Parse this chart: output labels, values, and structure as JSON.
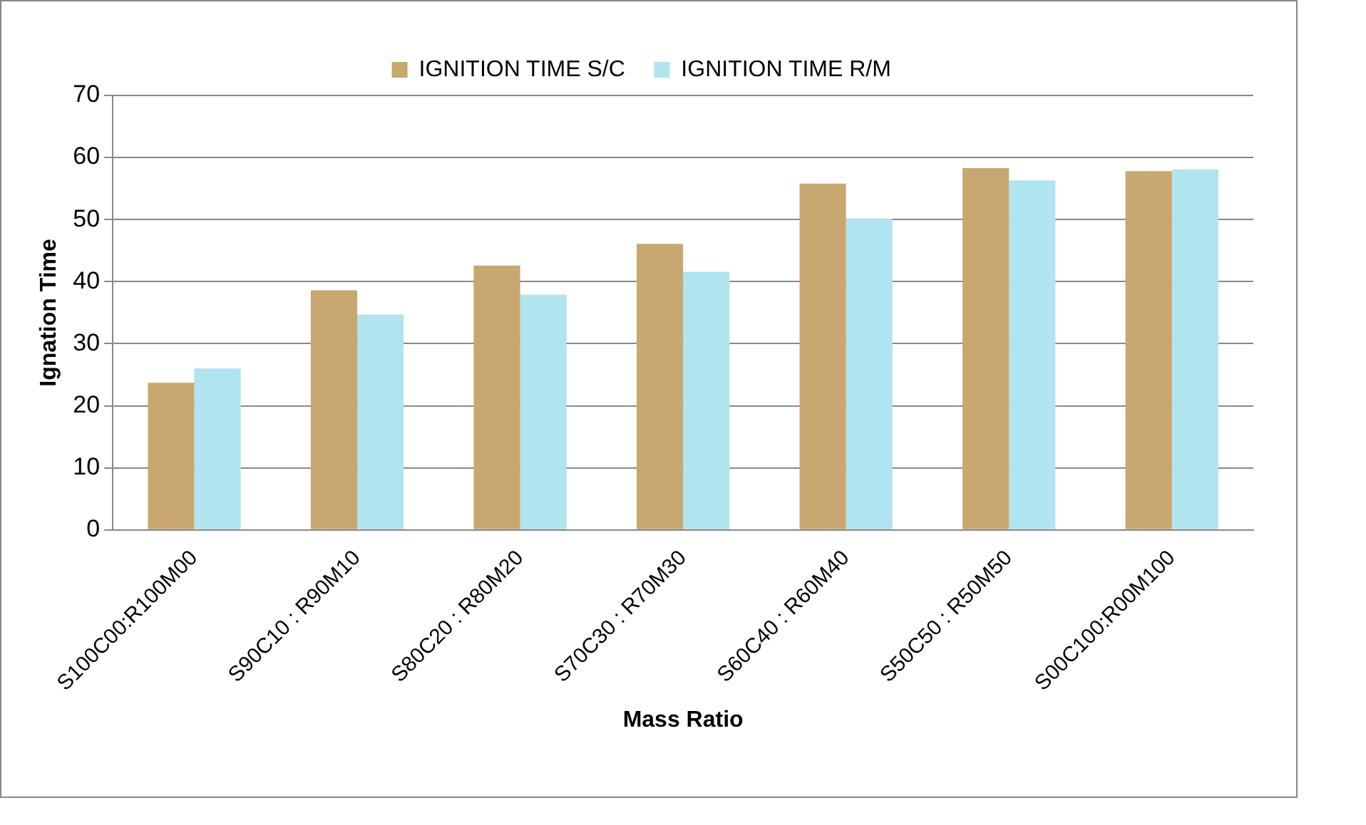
{
  "chart_data": {
    "type": "bar",
    "xlabel": "Mass Ratio",
    "ylabel": "Ignation Time",
    "categories": [
      "S100C00:R100M00",
      "S90C10 : R90M10",
      "S80C20 : R80M20",
      "S70C30 : R70M30",
      "S60C40 : R60M40",
      "S50C50 : R50M50",
      "S00C100:R00M100"
    ],
    "series": [
      {
        "name": "IGNITION TIME S/C",
        "color": "#c8a870",
        "values": [
          23.7,
          38.6,
          42.6,
          46.1,
          55.8,
          58.3,
          57.8
        ]
      },
      {
        "name": "IGNITION TIME R/M",
        "color": "#b0e4ee",
        "values": [
          26,
          34.7,
          37.9,
          41.6,
          50.1,
          56.3,
          58.1
        ]
      }
    ],
    "ylim": [
      0,
      70
    ],
    "yticks": [
      0,
      10,
      20,
      30,
      40,
      50,
      60,
      70
    ],
    "grid": "y",
    "legend": "top"
  }
}
